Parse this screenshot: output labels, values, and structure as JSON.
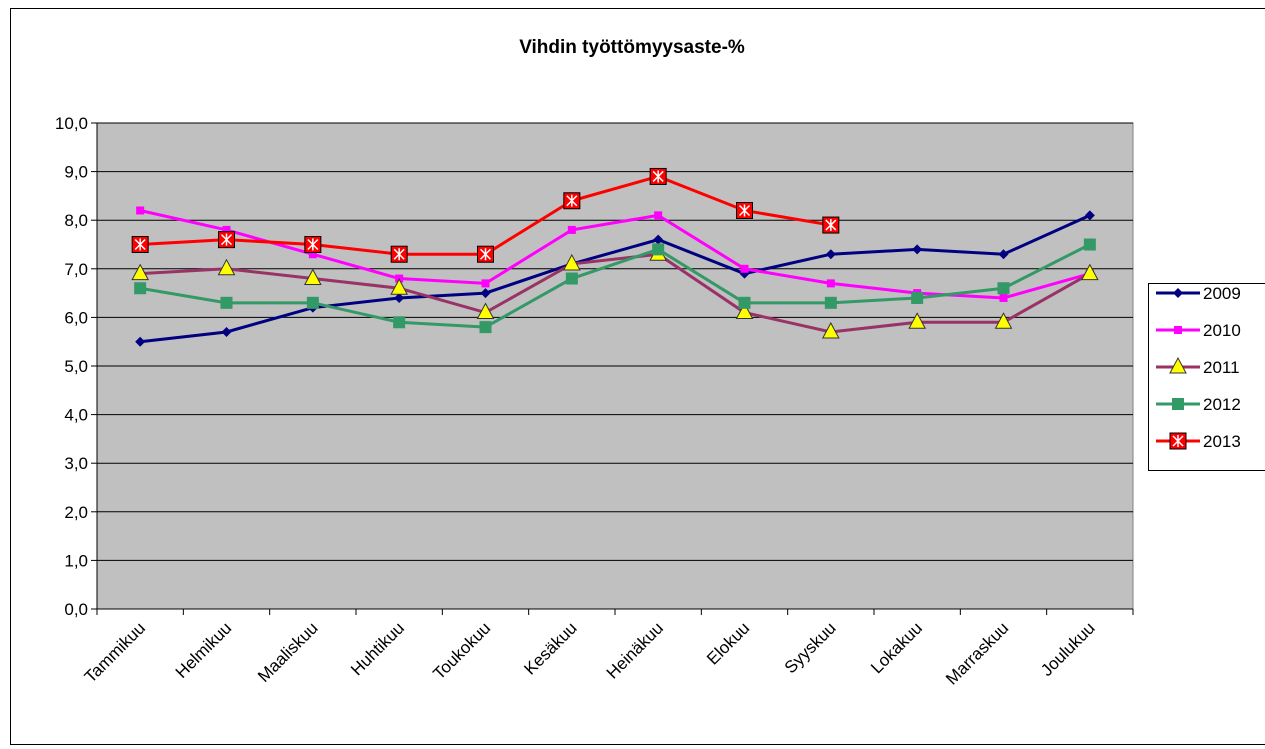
{
  "chart_data": {
    "type": "line",
    "title": "Vihdin työttömyysaste-%",
    "categories": [
      "Tammikuu",
      "Helmikuu",
      "Maaliskuu",
      "Huhtikuu",
      "Toukokuu",
      "Kesäkuu",
      "Heinäkuu",
      "Elokuu",
      "Syyskuu",
      "Lokakuu",
      "Marraskuu",
      "Joulukuu"
    ],
    "series": [
      {
        "name": "2009",
        "color": "#000080",
        "marker": "diamond",
        "values": [
          5.5,
          5.7,
          6.2,
          6.4,
          6.5,
          7.1,
          7.6,
          6.9,
          7.3,
          7.4,
          7.3,
          8.1
        ]
      },
      {
        "name": "2010",
        "color": "#ff00ff",
        "marker": "square",
        "values": [
          8.2,
          7.8,
          7.3,
          6.8,
          6.7,
          7.8,
          8.1,
          7.0,
          6.7,
          6.5,
          6.4,
          6.9
        ]
      },
      {
        "name": "2011",
        "color": "#993366",
        "marker": "triangle",
        "values": [
          6.9,
          7.0,
          6.8,
          6.6,
          6.1,
          7.1,
          7.3,
          6.1,
          5.7,
          5.9,
          5.9,
          6.9
        ]
      },
      {
        "name": "2012",
        "color": "#339966",
        "marker": "square",
        "values": [
          6.6,
          6.3,
          6.3,
          5.9,
          5.8,
          6.8,
          7.4,
          6.3,
          6.3,
          6.4,
          6.6,
          7.5
        ]
      },
      {
        "name": "2013",
        "color": "#ff0000",
        "marker": "star-square",
        "values": [
          7.5,
          7.6,
          7.5,
          7.3,
          7.3,
          8.4,
          8.9,
          8.2,
          7.9,
          null,
          null,
          null
        ]
      }
    ],
    "ylim": [
      0,
      10
    ],
    "yticks": [
      {
        "value": 0,
        "label": "0,0"
      },
      {
        "value": 1,
        "label": "1,0"
      },
      {
        "value": 2,
        "label": "2,0"
      },
      {
        "value": 3,
        "label": "3,0"
      },
      {
        "value": 4,
        "label": "4,0"
      },
      {
        "value": 5,
        "label": "5,0"
      },
      {
        "value": 6,
        "label": "6,0"
      },
      {
        "value": 7,
        "label": "7,0"
      },
      {
        "value": 8,
        "label": "8,0"
      },
      {
        "value": 9,
        "label": "9,0"
      },
      {
        "value": 10,
        "label": "10,0"
      }
    ],
    "grid": true,
    "legend": "right",
    "plot_background": "#c0c0c0"
  }
}
